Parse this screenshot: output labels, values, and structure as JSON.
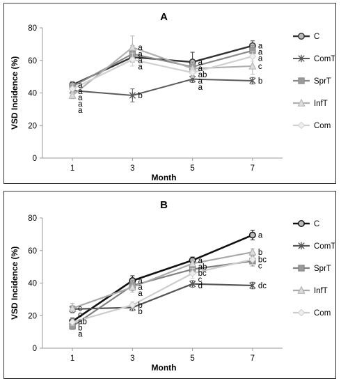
{
  "chart_data": [
    {
      "type": "line",
      "title": "A",
      "xlabel": "Month",
      "ylabel": "VSD Incidence (%)",
      "x": [
        1,
        3,
        5,
        7
      ],
      "ylim": [
        0,
        80
      ],
      "yticks": [
        0,
        20,
        40,
        60,
        80
      ],
      "grid": false,
      "legend": "right",
      "series": [
        {
          "name": "C",
          "values": [
            45,
            62,
            59,
            69
          ],
          "errors": [
            2,
            3,
            6,
            3
          ],
          "color": "#333333",
          "marker": "circle",
          "width": 2.4,
          "letters": [
            "a",
            "a",
            "a",
            "a"
          ]
        },
        {
          "name": "ComT",
          "values": [
            41.5,
            38.5,
            48.5,
            47.5
          ],
          "errors": [
            2,
            4,
            2,
            2
          ],
          "color": "#5a5a5a",
          "marker": "star",
          "width": 2,
          "letters": [
            "a",
            "b",
            "a",
            "b"
          ]
        },
        {
          "name": "SprT",
          "values": [
            44,
            64,
            56,
            66
          ],
          "errors": [
            3,
            5,
            3,
            3
          ],
          "color": "#8a8a8a",
          "marker": "square",
          "width": 2.2,
          "letters": [
            "a",
            "a",
            "a",
            "a"
          ]
        },
        {
          "name": "InfT",
          "values": [
            38.5,
            68,
            55,
            56.5
          ],
          "errors": [
            2,
            7,
            3,
            5
          ],
          "color": "#b0b0b0",
          "marker": "triangle",
          "width": 2.2,
          "letters": [
            "a",
            "a",
            "ab",
            "c"
          ]
        },
        {
          "name": "Com",
          "values": [
            42.5,
            60.5,
            52.5,
            62.5
          ],
          "errors": [
            3,
            4,
            3,
            3
          ],
          "color": "#d0d0d0",
          "marker": "diamond",
          "width": 2.2,
          "letters": [
            "a",
            "a",
            "a",
            "a"
          ]
        }
      ]
    },
    {
      "type": "line",
      "title": "B",
      "xlabel": "Month",
      "ylabel": "VSD Incidence (%)",
      "x": [
        1,
        3,
        5,
        7
      ],
      "ylim": [
        0,
        80
      ],
      "yticks": [
        0,
        20,
        40,
        60,
        80
      ],
      "grid": false,
      "legend": "right",
      "series": [
        {
          "name": "C",
          "values": [
            16.5,
            41.5,
            54,
            69.5
          ],
          "errors": [
            2,
            3,
            2,
            3
          ],
          "color": "#111111",
          "marker": "circle",
          "width": 2.6,
          "letters": [
            "ab",
            "a",
            "a",
            "a"
          ]
        },
        {
          "name": "ComT",
          "values": [
            24,
            25,
            39.5,
            38.5
          ],
          "errors": [
            2,
            2,
            2,
            2
          ],
          "color": "#555555",
          "marker": "star",
          "width": 2.2,
          "letters": [
            "c",
            "b",
            "d",
            "dc"
          ]
        },
        {
          "name": "SprT",
          "values": [
            13.5,
            38.5,
            48.5,
            53.5
          ],
          "errors": [
            2,
            3,
            3,
            3
          ],
          "color": "#808080",
          "marker": "square",
          "width": 2.2,
          "letters": [
            "a",
            "a",
            "bc",
            "c"
          ]
        },
        {
          "name": "InfT",
          "values": [
            24.5,
            37.5,
            52,
            59
          ],
          "errors": [
            3,
            3,
            3,
            2
          ],
          "color": "#a8a8a8",
          "marker": "triangle",
          "width": 2.2,
          "letters": [
            "c",
            "a",
            "ab",
            "b"
          ]
        },
        {
          "name": "Com",
          "values": [
            16,
            26.5,
            46,
            54.5
          ],
          "errors": [
            2,
            2,
            3,
            3
          ],
          "color": "#cccccc",
          "marker": "diamond",
          "width": 2.2,
          "letters": [
            "b",
            "b",
            "c",
            "bc"
          ]
        }
      ]
    }
  ]
}
